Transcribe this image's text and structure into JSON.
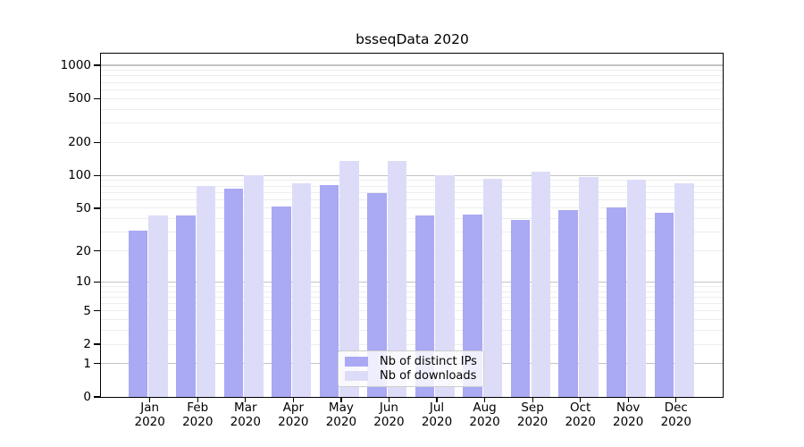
{
  "chart_data": {
    "type": "bar",
    "title": "bsseqData 2020",
    "year": "2020",
    "categories": [
      "Jan",
      "Feb",
      "Mar",
      "Apr",
      "May",
      "Jun",
      "Jul",
      "Aug",
      "Sep",
      "Oct",
      "Nov",
      "Dec"
    ],
    "series": [
      {
        "name": "Nb of distinct IPs",
        "color": "#a9a9f4",
        "values": [
          31,
          43,
          75,
          52,
          82,
          69,
          43,
          44,
          39,
          48,
          51,
          45
        ]
      },
      {
        "name": "Nb of downloads",
        "color": "#dcdcf9",
        "values": [
          43,
          80,
          100,
          85,
          136,
          136,
          100,
          93,
          108,
          97,
          91,
          84
        ]
      }
    ],
    "y_ticks": [
      1000,
      500,
      200,
      100,
      50,
      20,
      10,
      5,
      2,
      1,
      0
    ],
    "ylim": [
      0,
      1270
    ],
    "scale": "log10(value+1)",
    "grid": "horizontal",
    "legend_position": "inside-bottom-center",
    "colors": {
      "major_grid": "#c3c3c3",
      "minor_grid": "#ededed",
      "axis": "#000000",
      "legend_border": "#cccccc",
      "background": "#ffffff"
    }
  }
}
